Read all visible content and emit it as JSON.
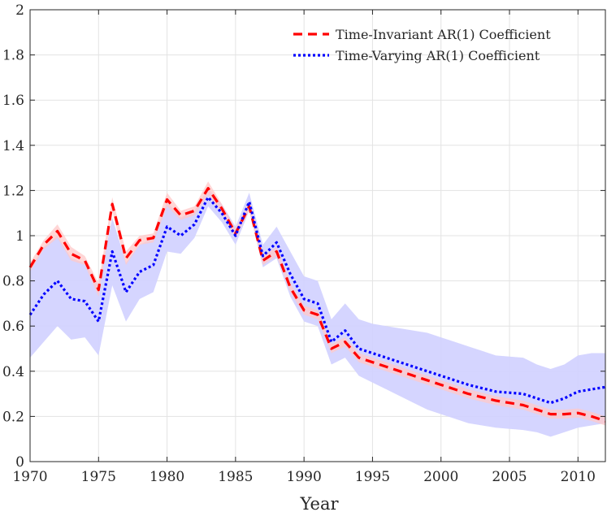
{
  "chart_data": {
    "type": "line",
    "title": "",
    "xlabel": "Year",
    "ylabel": "",
    "xlim": [
      1970,
      2012
    ],
    "ylim": [
      0,
      2
    ],
    "grid": true,
    "legend_position": "top-right",
    "xticks": [
      1970,
      1975,
      1980,
      1985,
      1990,
      1995,
      2000,
      2005,
      2010
    ],
    "yticks": [
      0,
      0.2,
      0.4,
      0.6,
      0.8,
      1,
      1.2,
      1.4,
      1.6,
      1.8,
      2
    ],
    "x": [
      1970,
      1971,
      1972,
      1973,
      1974,
      1975,
      1976,
      1977,
      1978,
      1979,
      1980,
      1981,
      1982,
      1983,
      1984,
      1985,
      1986,
      1987,
      1988,
      1989,
      1990,
      1991,
      1992,
      1993,
      1994,
      1995,
      1996,
      1997,
      1998,
      1999,
      2000,
      2001,
      2002,
      2003,
      2004,
      2005,
      2006,
      2007,
      2008,
      2009,
      2010,
      2011,
      2012
    ],
    "series": [
      {
        "name": "Time-Invariant AR(1) Coefficient",
        "style": "dashed",
        "color": "#ff0000",
        "band_color": "#ffc8c8",
        "values": [
          0.86,
          0.96,
          1.02,
          0.92,
          0.89,
          0.76,
          1.14,
          0.9,
          0.98,
          0.99,
          1.16,
          1.09,
          1.11,
          1.21,
          1.12,
          1.01,
          1.13,
          0.89,
          0.93,
          0.77,
          0.67,
          0.65,
          0.5,
          0.53,
          0.46,
          0.44,
          0.42,
          0.4,
          0.38,
          0.36,
          0.34,
          0.32,
          0.3,
          0.285,
          0.27,
          0.26,
          0.25,
          0.23,
          0.21,
          0.21,
          0.215,
          0.2,
          0.18
        ],
        "lower": [
          0.84,
          0.94,
          0.99,
          0.89,
          0.87,
          0.73,
          1.11,
          0.87,
          0.96,
          0.97,
          1.13,
          1.07,
          1.09,
          1.18,
          1.1,
          0.99,
          1.11,
          0.87,
          0.91,
          0.75,
          0.65,
          0.63,
          0.48,
          0.51,
          0.44,
          0.42,
          0.4,
          0.38,
          0.36,
          0.34,
          0.32,
          0.3,
          0.28,
          0.265,
          0.25,
          0.24,
          0.23,
          0.21,
          0.19,
          0.19,
          0.195,
          0.18,
          0.16
        ],
        "upper": [
          0.88,
          0.98,
          1.05,
          0.95,
          0.91,
          0.79,
          1.17,
          0.93,
          1.0,
          1.01,
          1.19,
          1.11,
          1.13,
          1.24,
          1.14,
          1.03,
          1.15,
          0.91,
          0.95,
          0.79,
          0.69,
          0.67,
          0.52,
          0.55,
          0.48,
          0.46,
          0.44,
          0.42,
          0.4,
          0.38,
          0.36,
          0.34,
          0.32,
          0.305,
          0.29,
          0.28,
          0.27,
          0.25,
          0.23,
          0.23,
          0.235,
          0.22,
          0.2
        ]
      },
      {
        "name": "Time-Varying AR(1) Coefficient",
        "style": "dotted",
        "color": "#0000ff",
        "band_color": "#d0d0ff",
        "values": [
          0.65,
          0.74,
          0.8,
          0.72,
          0.71,
          0.62,
          0.93,
          0.75,
          0.84,
          0.87,
          1.04,
          1.0,
          1.05,
          1.17,
          1.1,
          1.0,
          1.15,
          0.91,
          0.97,
          0.83,
          0.72,
          0.7,
          0.53,
          0.58,
          0.5,
          0.48,
          0.46,
          0.44,
          0.42,
          0.4,
          0.38,
          0.36,
          0.34,
          0.325,
          0.31,
          0.305,
          0.3,
          0.28,
          0.26,
          0.28,
          0.31,
          0.32,
          0.33
        ],
        "lower": [
          0.46,
          0.53,
          0.6,
          0.54,
          0.55,
          0.47,
          0.78,
          0.62,
          0.72,
          0.75,
          0.93,
          0.92,
          0.99,
          1.13,
          1.06,
          0.96,
          1.11,
          0.86,
          0.9,
          0.73,
          0.62,
          0.6,
          0.43,
          0.46,
          0.38,
          0.35,
          0.32,
          0.29,
          0.26,
          0.23,
          0.21,
          0.19,
          0.17,
          0.16,
          0.15,
          0.145,
          0.14,
          0.13,
          0.11,
          0.13,
          0.15,
          0.16,
          0.17
        ],
        "upper": [
          0.85,
          0.95,
          1.0,
          0.9,
          0.88,
          0.78,
          1.08,
          0.88,
          0.96,
          0.99,
          1.15,
          1.08,
          1.11,
          1.21,
          1.14,
          1.04,
          1.19,
          0.96,
          1.04,
          0.93,
          0.82,
          0.8,
          0.63,
          0.7,
          0.63,
          0.61,
          0.6,
          0.59,
          0.58,
          0.57,
          0.55,
          0.53,
          0.51,
          0.49,
          0.47,
          0.465,
          0.46,
          0.43,
          0.41,
          0.43,
          0.47,
          0.48,
          0.48
        ]
      }
    ]
  }
}
